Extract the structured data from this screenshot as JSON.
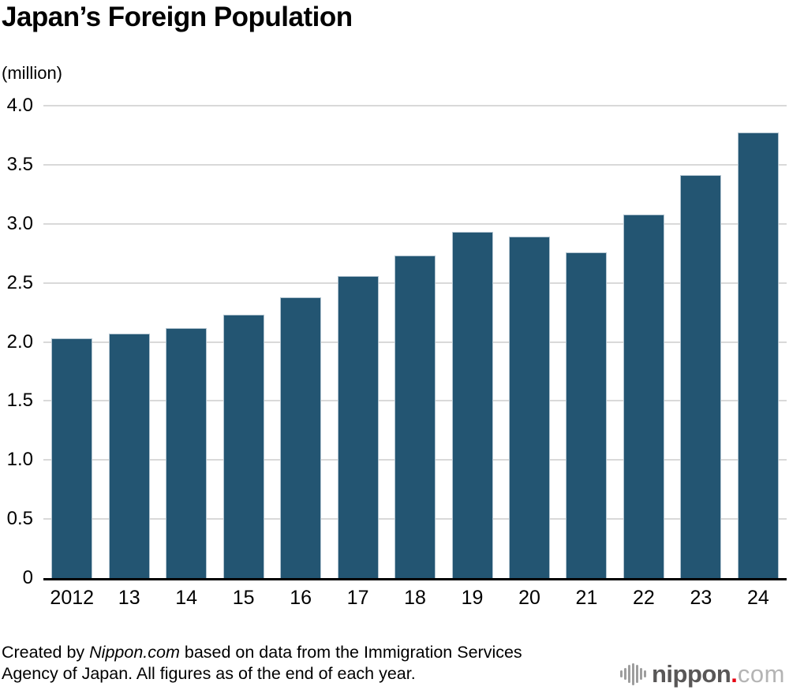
{
  "title": "Japan’s Foreign Population",
  "unit_label": "(million)",
  "chart_data": {
    "type": "bar",
    "title": "Japan’s Foreign Population",
    "xlabel": "",
    "ylabel": "(million)",
    "categories": [
      "2012",
      "13",
      "14",
      "15",
      "16",
      "17",
      "18",
      "19",
      "20",
      "21",
      "22",
      "23",
      "24"
    ],
    "values": [
      2.03,
      2.07,
      2.12,
      2.23,
      2.38,
      2.56,
      2.73,
      2.93,
      2.89,
      2.76,
      3.08,
      3.41,
      3.77
    ],
    "ylim": [
      0,
      4.0
    ],
    "yticks": [
      0,
      0.5,
      1.0,
      1.5,
      2.0,
      2.5,
      3.0,
      3.5,
      4.0
    ],
    "ytick_labels": [
      "0",
      "0.5",
      "1.0",
      "1.5",
      "2.0",
      "2.5",
      "3.0",
      "3.5",
      "4.0"
    ],
    "grid": true,
    "legend": false,
    "bar_color": "#235572",
    "gridline_color": "#d9d9d9",
    "axis_color": "#000000"
  },
  "footer": {
    "credit_prefix": "Created by ",
    "credit_source_italic": "Nippon.com",
    "credit_line1_rest": " based on data from the Immigration Services",
    "credit_line2": "Agency of Japan. All figures as of the end of each year."
  },
  "logo": {
    "icon": "soundwave-icon",
    "name": "nippon",
    "dot": ".",
    "tld": "com",
    "name_color": "#595757",
    "dot_color": "#e60012",
    "tld_color": "#b4b4b4",
    "icon_color": "#9e9e9e"
  }
}
